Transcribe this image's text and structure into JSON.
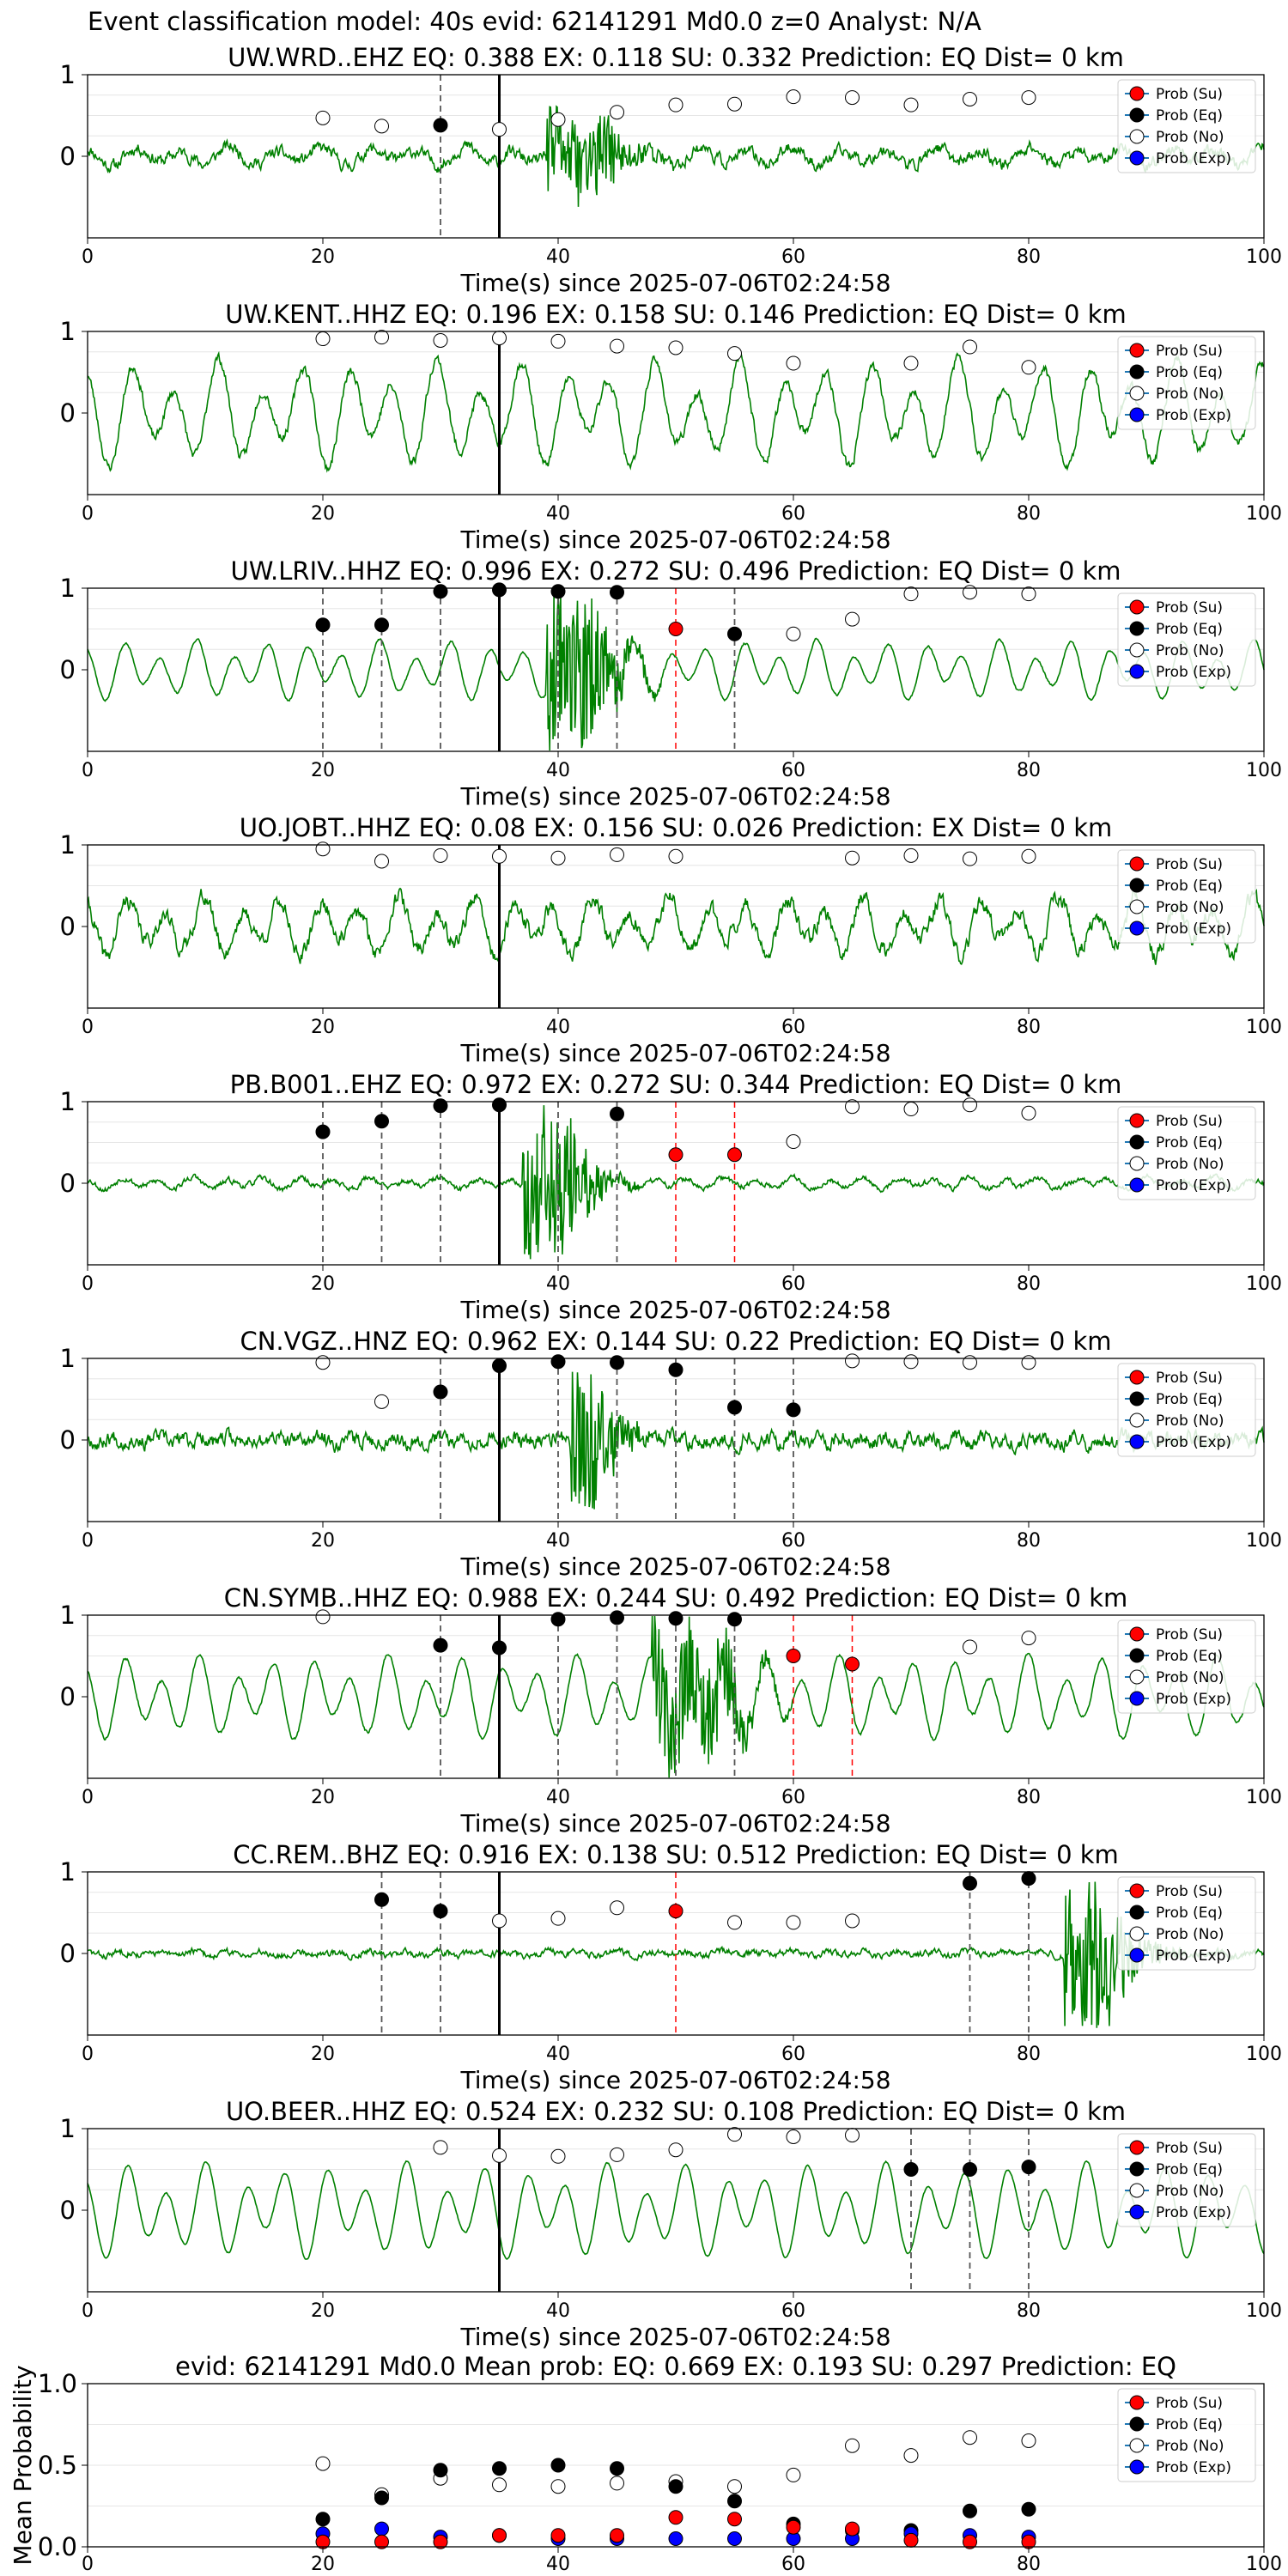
{
  "suptitle": "Event classification model: 40s evid: 62141291 Md0.0 z=0 Analyst: N/A",
  "chart_data": {
    "type": "line",
    "xlabel": "Time(s) since 2025-07-06T02:24:58",
    "xlim": [
      0,
      100
    ],
    "xticks": [
      0,
      20,
      40,
      60,
      80,
      100
    ],
    "ylim_waveform": [
      -1,
      1
    ],
    "yticks_waveform": [
      0,
      1
    ],
    "grid": true,
    "legend_position": "top-right",
    "legend": [
      "Prob (Su)",
      "Prob (Eq)",
      "Prob (No)",
      "Prob (Exp)"
    ],
    "colors": {
      "trace": "#008000",
      "su": "#ff0000",
      "eq": "#000000",
      "no": "#ffffff",
      "exp": "#0000ff",
      "pick": "#000000",
      "dash_eq": "#555555",
      "dash_su": "#ff0000"
    },
    "pick_time": 35,
    "stations": [
      {
        "title": "UW.WRD..EHZ   EQ: 0.388  EX: 0.118  SU: 0.332   Prediction: EQ    Dist= 0 km",
        "noise": 0.15,
        "osc": 0.08,
        "period": 4,
        "burst": [
          39,
          44,
          0.5
        ],
        "seed": 11,
        "prob_no": [
          [
            20,
            0.47
          ],
          [
            25,
            0.37
          ],
          [
            35,
            0.33
          ],
          [
            40,
            0.45
          ],
          [
            45,
            0.54
          ],
          [
            50,
            0.63
          ],
          [
            55,
            0.64
          ],
          [
            60,
            0.73
          ],
          [
            65,
            0.72
          ],
          [
            70,
            0.63
          ],
          [
            75,
            0.7
          ],
          [
            80,
            0.72
          ]
        ],
        "prob_eq": [
          [
            30,
            0.38
          ]
        ],
        "prob_su": [],
        "dash_eq": [
          30
        ],
        "dash_su": []
      },
      {
        "title": "UW.KENT..HHZ   EQ: 0.196  EX: 0.158  SU: 0.146   Prediction: EQ    Dist= 0 km",
        "noise": 0.12,
        "osc": 0.45,
        "period": 3.7,
        "burst": [
          0,
          0,
          0
        ],
        "seed": 23,
        "prob_no": [
          [
            20,
            0.91
          ],
          [
            25,
            0.93
          ],
          [
            30,
            0.89
          ],
          [
            35,
            0.92
          ],
          [
            40,
            0.88
          ],
          [
            45,
            0.82
          ],
          [
            50,
            0.8
          ],
          [
            55,
            0.73
          ],
          [
            60,
            0.61
          ],
          [
            70,
            0.61
          ],
          [
            75,
            0.81
          ],
          [
            80,
            0.56
          ]
        ],
        "prob_eq": [],
        "prob_su": [],
        "dash_eq": [],
        "dash_su": []
      },
      {
        "title": "UW.LRIV..HHZ   EQ: 0.996  EX: 0.272  SU: 0.496   Prediction: EQ    Dist= 0 km",
        "noise": 0.03,
        "osc": 0.25,
        "period": 3.1,
        "burst": [
          39,
          43,
          1.0
        ],
        "seed": 37,
        "prob_no": [
          [
            60,
            0.44
          ],
          [
            65,
            0.62
          ],
          [
            70,
            0.93
          ],
          [
            75,
            0.95
          ],
          [
            80,
            0.93
          ]
        ],
        "prob_eq": [
          [
            20,
            0.55
          ],
          [
            25,
            0.55
          ],
          [
            30,
            0.96
          ],
          [
            35,
            0.98
          ],
          [
            40,
            0.96
          ],
          [
            45,
            0.95
          ],
          [
            55,
            0.44
          ]
        ],
        "prob_su": [
          [
            50,
            0.5
          ]
        ],
        "dash_eq": [
          20,
          25,
          30,
          40,
          45,
          55
        ],
        "dash_su": [
          50
        ]
      },
      {
        "title": "UO.JOBT..HHZ   EQ: 0.08  EX: 0.156  SU: 0.026   Prediction: EX    Dist= 0 km",
        "noise": 0.2,
        "osc": 0.25,
        "period": 3.3,
        "burst": [
          0,
          0,
          0
        ],
        "seed": 41,
        "prob_no": [
          [
            20,
            0.95
          ],
          [
            25,
            0.8
          ],
          [
            30,
            0.87
          ],
          [
            35,
            0.86
          ],
          [
            40,
            0.84
          ],
          [
            45,
            0.88
          ],
          [
            50,
            0.86
          ],
          [
            65,
            0.84
          ],
          [
            70,
            0.87
          ],
          [
            75,
            0.83
          ],
          [
            80,
            0.86
          ]
        ],
        "prob_eq": [],
        "prob_su": [],
        "dash_eq": [],
        "dash_su": []
      },
      {
        "title": "PB.B001..EHZ   EQ: 0.972  EX: 0.272  SU: 0.344   Prediction: EQ    Dist= 0 km",
        "noise": 0.07,
        "osc": 0.05,
        "period": 3,
        "burst": [
          37,
          41,
          0.9
        ],
        "seed": 53,
        "prob_no": [
          [
            60,
            0.51
          ],
          [
            65,
            0.94
          ],
          [
            70,
            0.91
          ],
          [
            75,
            0.96
          ],
          [
            80,
            0.86
          ]
        ],
        "prob_eq": [
          [
            20,
            0.63
          ],
          [
            25,
            0.76
          ],
          [
            30,
            0.95
          ],
          [
            35,
            0.96
          ],
          [
            45,
            0.85
          ]
        ],
        "prob_su": [
          [
            50,
            0.35
          ],
          [
            55,
            0.35
          ]
        ],
        "dash_eq": [
          20,
          25,
          30,
          40,
          45
        ],
        "dash_su": [
          50,
          55
        ]
      },
      {
        "title": "CN.VGZ..HNZ   EQ: 0.962  EX: 0.144  SU: 0.22   Prediction: EQ    Dist= 0 km",
        "noise": 0.18,
        "osc": 0.03,
        "period": 2,
        "burst": [
          41,
          43,
          0.9
        ],
        "seed": 67,
        "prob_no": [
          [
            20,
            0.95
          ],
          [
            25,
            0.47
          ],
          [
            65,
            0.97
          ],
          [
            70,
            0.96
          ],
          [
            75,
            0.95
          ],
          [
            80,
            0.95
          ]
        ],
        "prob_eq": [
          [
            30,
            0.59
          ],
          [
            35,
            0.91
          ],
          [
            40,
            0.96
          ],
          [
            45,
            0.95
          ],
          [
            50,
            0.86
          ],
          [
            55,
            0.4
          ],
          [
            60,
            0.37
          ]
        ],
        "prob_su": [],
        "dash_eq": [
          30,
          40,
          45,
          50,
          55,
          60
        ],
        "dash_su": []
      },
      {
        "title": "CN.SYMB..HHZ   EQ: 0.988  EX: 0.244  SU: 0.492   Prediction: EQ    Dist= 0 km",
        "noise": 0.04,
        "osc": 0.35,
        "period": 3.2,
        "burst": [
          48,
          54,
          0.7
        ],
        "seed": 79,
        "prob_no": [
          [
            20,
            0.98
          ],
          [
            75,
            0.61
          ],
          [
            80,
            0.72
          ]
        ],
        "prob_eq": [
          [
            30,
            0.63
          ],
          [
            35,
            0.6
          ],
          [
            40,
            0.95
          ],
          [
            45,
            0.97
          ],
          [
            50,
            0.96
          ],
          [
            55,
            0.95
          ]
        ],
        "prob_su": [
          [
            60,
            0.5
          ],
          [
            65,
            0.4
          ]
        ],
        "dash_eq": [
          30,
          40,
          45,
          50,
          55
        ],
        "dash_su": [
          60,
          65
        ]
      },
      {
        "title": "CC.REM..BHZ   EQ: 0.916  EX: 0.138  SU: 0.512   Prediction: EQ    Dist= 0 km",
        "noise": 0.08,
        "osc": 0.02,
        "period": 3,
        "burst": [
          83,
          87,
          0.9
        ],
        "seed": 83,
        "prob_no": [
          [
            35,
            0.4
          ],
          [
            40,
            0.43
          ],
          [
            45,
            0.56
          ],
          [
            55,
            0.38
          ],
          [
            60,
            0.38
          ],
          [
            65,
            0.4
          ]
        ],
        "prob_eq": [
          [
            25,
            0.66
          ],
          [
            30,
            0.52
          ],
          [
            75,
            0.86
          ],
          [
            80,
            0.92
          ]
        ],
        "prob_su": [
          [
            50,
            0.52
          ]
        ],
        "dash_eq": [
          25,
          30,
          75,
          80
        ],
        "dash_su": [
          50
        ]
      },
      {
        "title": "UO.BEER..HHZ   EQ: 0.524  EX: 0.232  SU: 0.108   Prediction: EQ    Dist= 0 km",
        "noise": 0.02,
        "osc": 0.4,
        "period": 3.4,
        "burst": [
          0,
          0,
          0
        ],
        "seed": 97,
        "prob_no": [
          [
            30,
            0.77
          ],
          [
            35,
            0.67
          ],
          [
            40,
            0.66
          ],
          [
            45,
            0.68
          ],
          [
            50,
            0.74
          ],
          [
            55,
            0.93
          ],
          [
            60,
            0.9
          ],
          [
            65,
            0.92
          ]
        ],
        "prob_eq": [
          [
            70,
            0.5
          ],
          [
            75,
            0.5
          ],
          [
            80,
            0.53
          ]
        ],
        "prob_su": [],
        "dash_eq": [
          70,
          75,
          80
        ],
        "dash_su": []
      }
    ],
    "summary": {
      "title": "evid: 62141291  Md0.0   Mean prob:    EQ: 0.669  EX: 0.193  SU: 0.297   Prediction: EQ",
      "ylabel": "Mean Probability",
      "ylim": [
        0,
        1
      ],
      "yticks": [
        "0.0",
        "0.5",
        "1.0"
      ],
      "x": [
        20,
        25,
        30,
        35,
        40,
        45,
        50,
        55,
        60,
        65,
        70,
        75,
        80
      ],
      "prob_no": [
        0.51,
        0.32,
        0.42,
        0.38,
        0.37,
        0.39,
        0.4,
        0.37,
        0.44,
        0.62,
        0.56,
        0.67,
        0.65
      ],
      "prob_eq": [
        0.17,
        0.3,
        0.47,
        0.48,
        0.5,
        0.48,
        0.37,
        0.28,
        0.14,
        0.1,
        0.1,
        0.22,
        0.23
      ],
      "prob_su": [
        0.03,
        0.03,
        0.03,
        0.07,
        0.07,
        0.07,
        0.18,
        0.17,
        0.12,
        0.11,
        0.04,
        0.03,
        0.03
      ],
      "prob_exp": [
        0.08,
        0.11,
        0.06,
        0.07,
        0.05,
        0.05,
        0.05,
        0.05,
        0.05,
        0.05,
        0.08,
        0.07,
        0.06
      ]
    }
  }
}
